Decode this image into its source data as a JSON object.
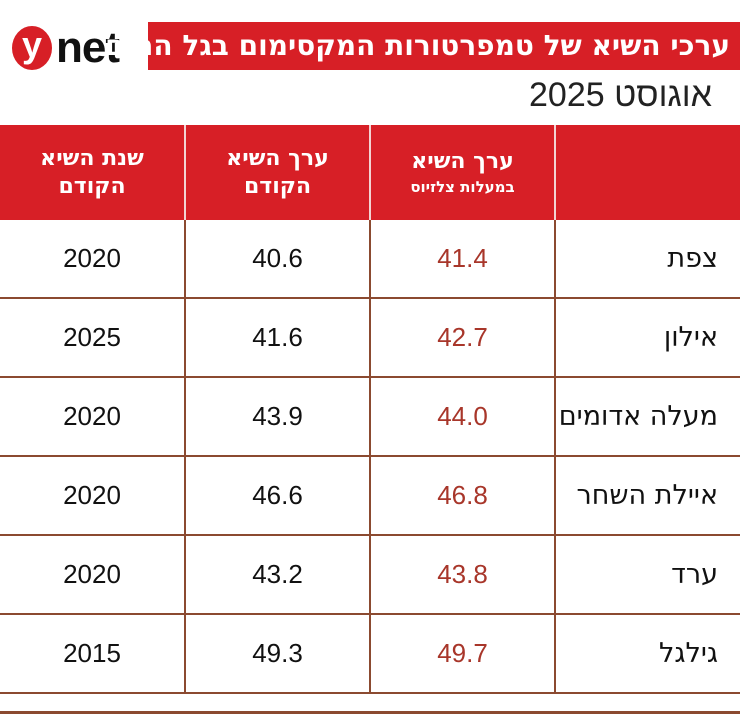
{
  "logo": {
    "text_y": "y",
    "text_net": "net"
  },
  "title": "ערכי השיא של טמפרטורות המקסימום בגל החום",
  "subtitle": "אוגוסט 2025",
  "colors": {
    "header": "#d71f26",
    "current_value": "#a8362a",
    "rule": "#8b4a30"
  },
  "chart_data": {
    "type": "table",
    "columns": [
      {
        "label": "",
        "sub": ""
      },
      {
        "label": "ערך השיא",
        "sub": "במעלות צלזיוס"
      },
      {
        "label": "ערך השיא",
        "sub": "הקודם"
      },
      {
        "label": "שנת השיא",
        "sub": "הקודם"
      }
    ],
    "rows": [
      {
        "city": "צפת",
        "record": "41.4",
        "previous": "40.6",
        "year": "2020"
      },
      {
        "city": "אילון",
        "record": "42.7",
        "previous": "41.6",
        "year": "2025"
      },
      {
        "city": "מעלה אדומים",
        "record": "44.0",
        "previous": "43.9",
        "year": "2020"
      },
      {
        "city": "איילת השחר",
        "record": "46.8",
        "previous": "46.6",
        "year": "2020"
      },
      {
        "city": "ערד",
        "record": "43.8",
        "previous": "43.2",
        "year": "2020"
      },
      {
        "city": "גילגל",
        "record": "49.7",
        "previous": "49.3",
        "year": "2015"
      }
    ]
  }
}
